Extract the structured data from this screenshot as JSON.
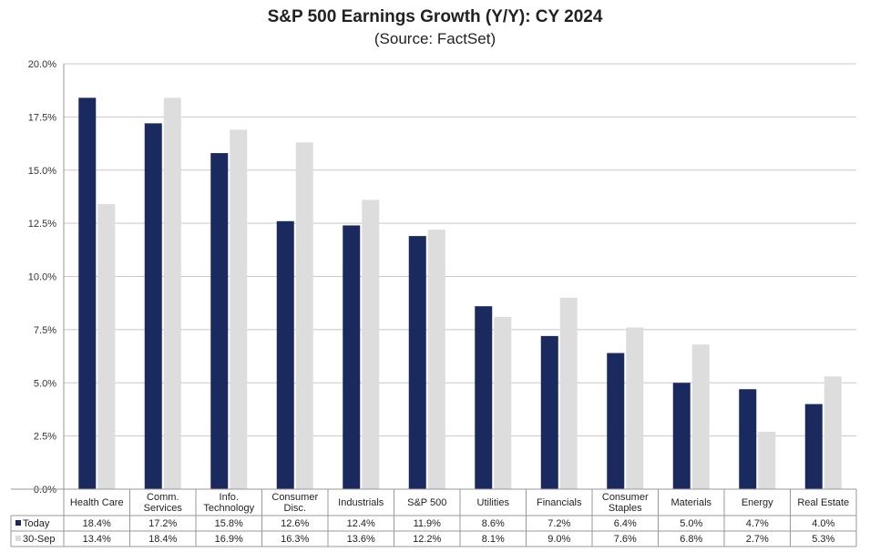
{
  "chart_data": {
    "type": "bar",
    "title": "S&P 500 Earnings Growth (Y/Y): CY 2024",
    "subtitle": "(Source: FactSet)",
    "ylim": [
      0,
      20
    ],
    "yticks": [
      "0.0%",
      "2.5%",
      "5.0%",
      "7.5%",
      "10.0%",
      "12.5%",
      "15.0%",
      "17.5%",
      "20.0%"
    ],
    "categories": [
      [
        "Health Care"
      ],
      [
        "Comm.",
        "Services"
      ],
      [
        "Info.",
        "Technology"
      ],
      [
        "Consumer",
        "Disc."
      ],
      [
        "Industrials"
      ],
      [
        "S&P 500"
      ],
      [
        "Utilities"
      ],
      [
        "Financials"
      ],
      [
        "Consumer",
        "Staples"
      ],
      [
        "Materials"
      ],
      [
        "Energy"
      ],
      [
        "Real Estate"
      ]
    ],
    "series": [
      {
        "name": "Today",
        "color": "#1b2a5e",
        "values": [
          18.4,
          17.2,
          15.8,
          12.6,
          12.4,
          11.9,
          8.6,
          7.2,
          6.4,
          5.0,
          4.7,
          4.0
        ],
        "labels": [
          "18.4%",
          "17.2%",
          "15.8%",
          "12.6%",
          "12.4%",
          "11.9%",
          "8.6%",
          "7.2%",
          "6.4%",
          "5.0%",
          "4.7%",
          "4.0%"
        ]
      },
      {
        "name": "30-Sep",
        "color": "#dddddd",
        "values": [
          13.4,
          18.4,
          16.9,
          16.3,
          13.6,
          12.2,
          8.1,
          9.0,
          7.6,
          6.8,
          2.7,
          5.3
        ],
        "labels": [
          "13.4%",
          "18.4%",
          "16.9%",
          "16.3%",
          "13.6%",
          "12.2%",
          "8.1%",
          "9.0%",
          "7.6%",
          "6.8%",
          "2.7%",
          "5.3%"
        ]
      }
    ],
    "grid": true,
    "legend": "data-table-below"
  }
}
